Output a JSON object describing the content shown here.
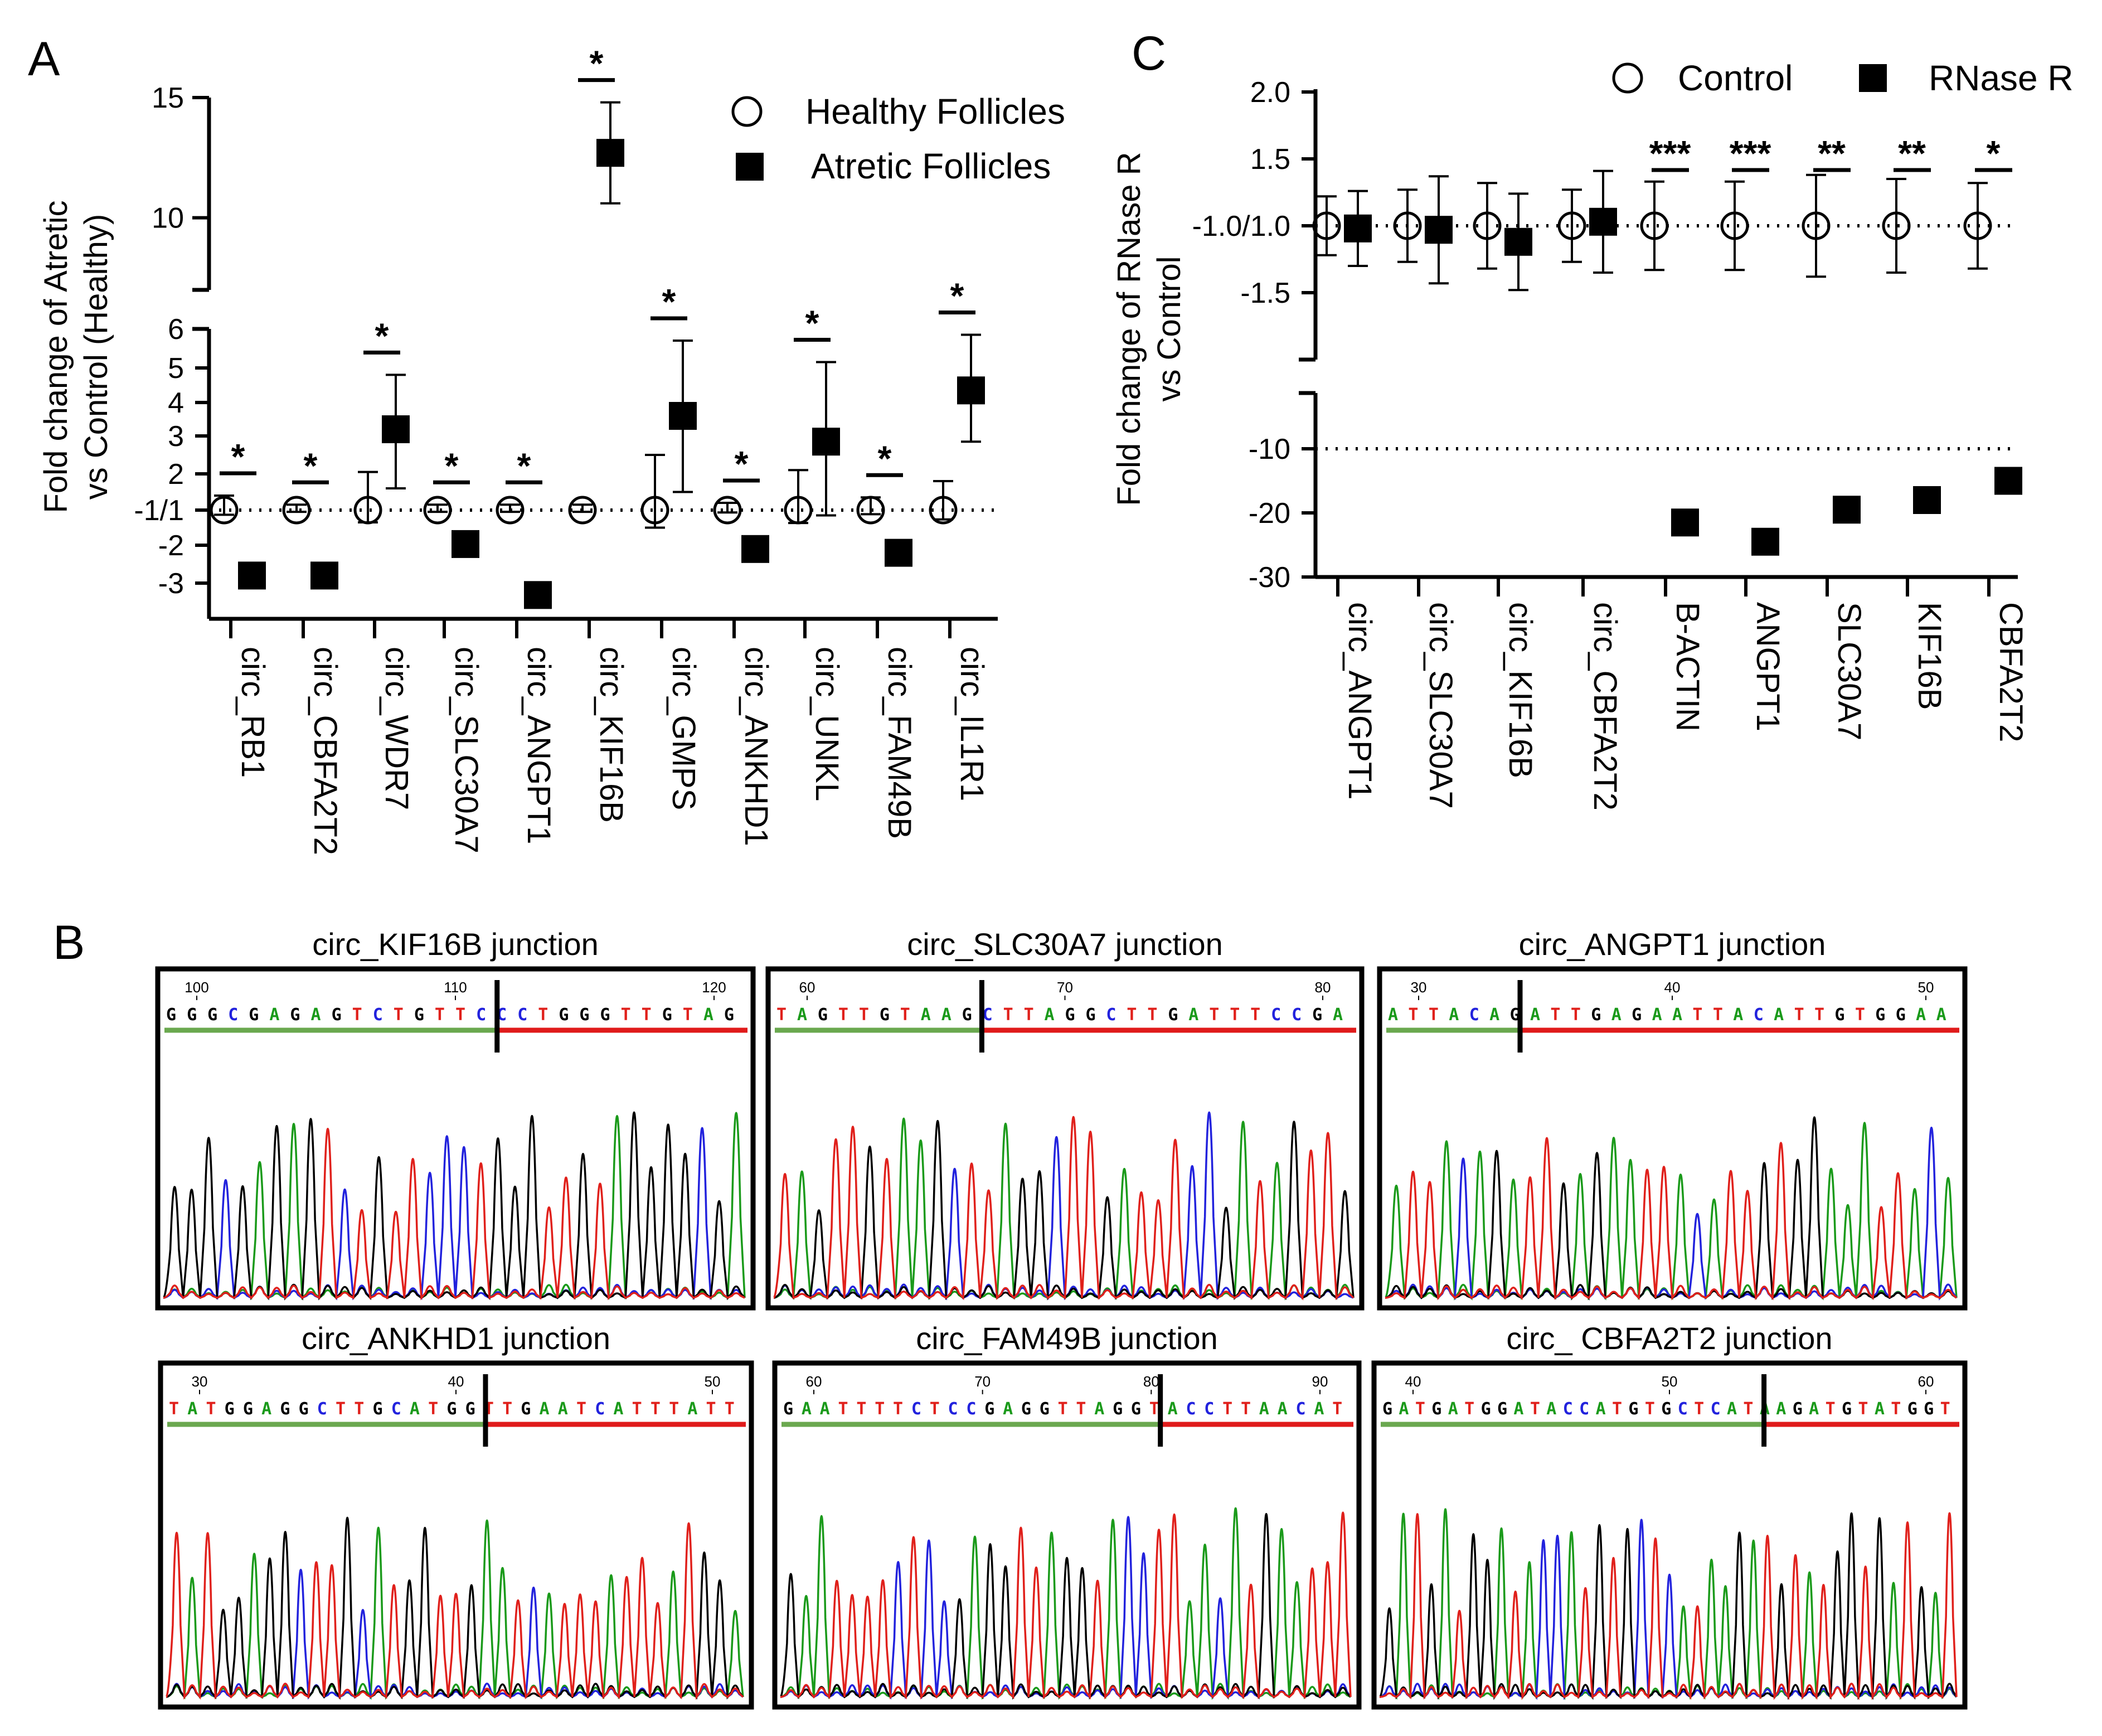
{
  "panels": {
    "A": {
      "letter": "A",
      "legend": {
        "open": "Healthy Follicles",
        "filled": "Atretic Follicles"
      }
    },
    "B": {
      "letter": "B",
      "junctions": [
        {
          "title": "circ_KIF16B junction",
          "seq": "GGGCGAGAGTCTGTTCCCTGGGTTGTAG",
          "positions": [
            "100",
            "110",
            "120"
          ]
        },
        {
          "title": "circ_SLC30A7 junction",
          "seq": "TAGTTGTAAGCTTAGGCTTGATTTCCGA",
          "positions": [
            "60",
            "70",
            "80"
          ]
        },
        {
          "title": "circ_ANGPT1 junction",
          "seq": "ATTACAGATTGAGAATTACATTGTGGAA",
          "positions": [
            "30",
            "40",
            "50"
          ]
        },
        {
          "title": "circ_ANKHD1 junction",
          "seq": "TATGGAGGCTTGCATGGTTGAATCATTTATT",
          "positions": [
            "30",
            "40",
            "50"
          ]
        },
        {
          "title": "circ_FAM49B junction",
          "seq": "GAATTTTCTCCGAGGTTAGGTACCTTAACAT",
          "positions": [
            "60",
            "70",
            "80",
            "90"
          ]
        },
        {
          "title": "circ_ CBFA2T2 junction",
          "seq": "GATGATGGATACCATGTGCTCATAAGATGTATGGT",
          "positions": [
            "40",
            "50",
            "60"
          ]
        }
      ]
    },
    "C": {
      "letter": "C",
      "legend": {
        "open": "Control",
        "filled": "RNase R"
      }
    }
  },
  "colors": {
    "A": "#1a9a1a",
    "C": "#2222dd",
    "G": "#000000",
    "T": "#e0201b",
    "green_bar": "#6aa84f",
    "red_bar": "#e01b1b"
  },
  "chart_data": [
    {
      "type": "scatter",
      "panel": "A",
      "ylabel": "Fold change of Atretic vs Control (Healthy)",
      "ylabel_lines": [
        "Fold change of Atretic",
        "vs Control (Healthy)"
      ],
      "y_ticks_upper": [
        "15",
        "10"
      ],
      "y_ticks_lower": [
        "6",
        "5",
        "4",
        "3",
        "2",
        "-1/1",
        "-2",
        "-3"
      ],
      "categories": [
        "circ_RB1",
        "circ_CBFA2T2",
        "circ_WDR7",
        "circ_SLC30A7",
        "circ_ANGPT1",
        "circ_KIF16B",
        "circ_GMPS",
        "circ_ANKHD1",
        "circ_UNKL",
        "circ_FAM49B",
        "circ_IL1R1"
      ],
      "series": [
        {
          "name": "Healthy Follicles",
          "marker": "open-circle",
          "values": [
            1,
            1,
            1,
            1,
            1,
            1,
            1,
            1,
            1,
            1,
            1
          ],
          "err": [
            0.4,
            0.15,
            1.05,
            0.15,
            0.15,
            0.15,
            1.5,
            0.2,
            1.1,
            0.35,
            0.8
          ]
        },
        {
          "name": "Atretic Follicles",
          "marker": "filled-square",
          "values": [
            -2.8,
            -2.8,
            3.2,
            -1.9,
            -3.3,
            12.7,
            3.6,
            -2.1,
            2.85,
            -2.2,
            4.35
          ],
          "err": [
            0,
            0,
            1.6,
            0,
            0,
            2.1,
            2.1,
            0,
            2.3,
            0,
            1.5
          ]
        }
      ],
      "significance": [
        "*",
        "*",
        "*",
        "*",
        "*",
        "*",
        "*",
        "*",
        "*",
        "*",
        "*"
      ]
    },
    {
      "type": "scatter",
      "panel": "C",
      "ylabel": "Fold change of RNase R vs Control",
      "ylabel_lines": [
        "Fold change of RNase R",
        "vs Control"
      ],
      "y_ticks_upper": [
        "2.0",
        "1.5",
        "-1.0/1.0",
        "-1.5"
      ],
      "y_ticks_lower": [
        "-10",
        "-20",
        "-30"
      ],
      "categories": [
        "circ_ANGPT1",
        "circ_SLC30A7",
        "circ_KIF16B",
        "circ_CBFA2T2",
        "B-ACTIN",
        "ANGPT1",
        "SLC30A7",
        "KIF16B",
        "CBFA2T2"
      ],
      "series": [
        {
          "name": "Control",
          "marker": "open-circle",
          "values": [
            1,
            1,
            1,
            1,
            1,
            1,
            1,
            1,
            null
          ],
          "err": [
            0.22,
            0.27,
            0.32,
            0.27,
            0.33,
            0.33,
            0.38,
            0.35,
            null
          ]
        },
        {
          "name": "RNase R",
          "marker": "filled-square",
          "values": [
            0.98,
            0.97,
            0.88,
            1.03,
            -21.5,
            -24.5,
            -19.5,
            -18,
            -15
          ],
          "err": [
            0.28,
            0.4,
            0.36,
            0.38,
            1.6,
            0,
            0,
            1.6,
            0
          ]
        }
      ],
      "extra_control_points": [
        {
          "category": "CBFA2T2",
          "value": 1,
          "err": 0.32
        }
      ],
      "significance": [
        "",
        "",
        "",
        "",
        "***",
        "***",
        "**",
        "**",
        "*"
      ]
    }
  ]
}
